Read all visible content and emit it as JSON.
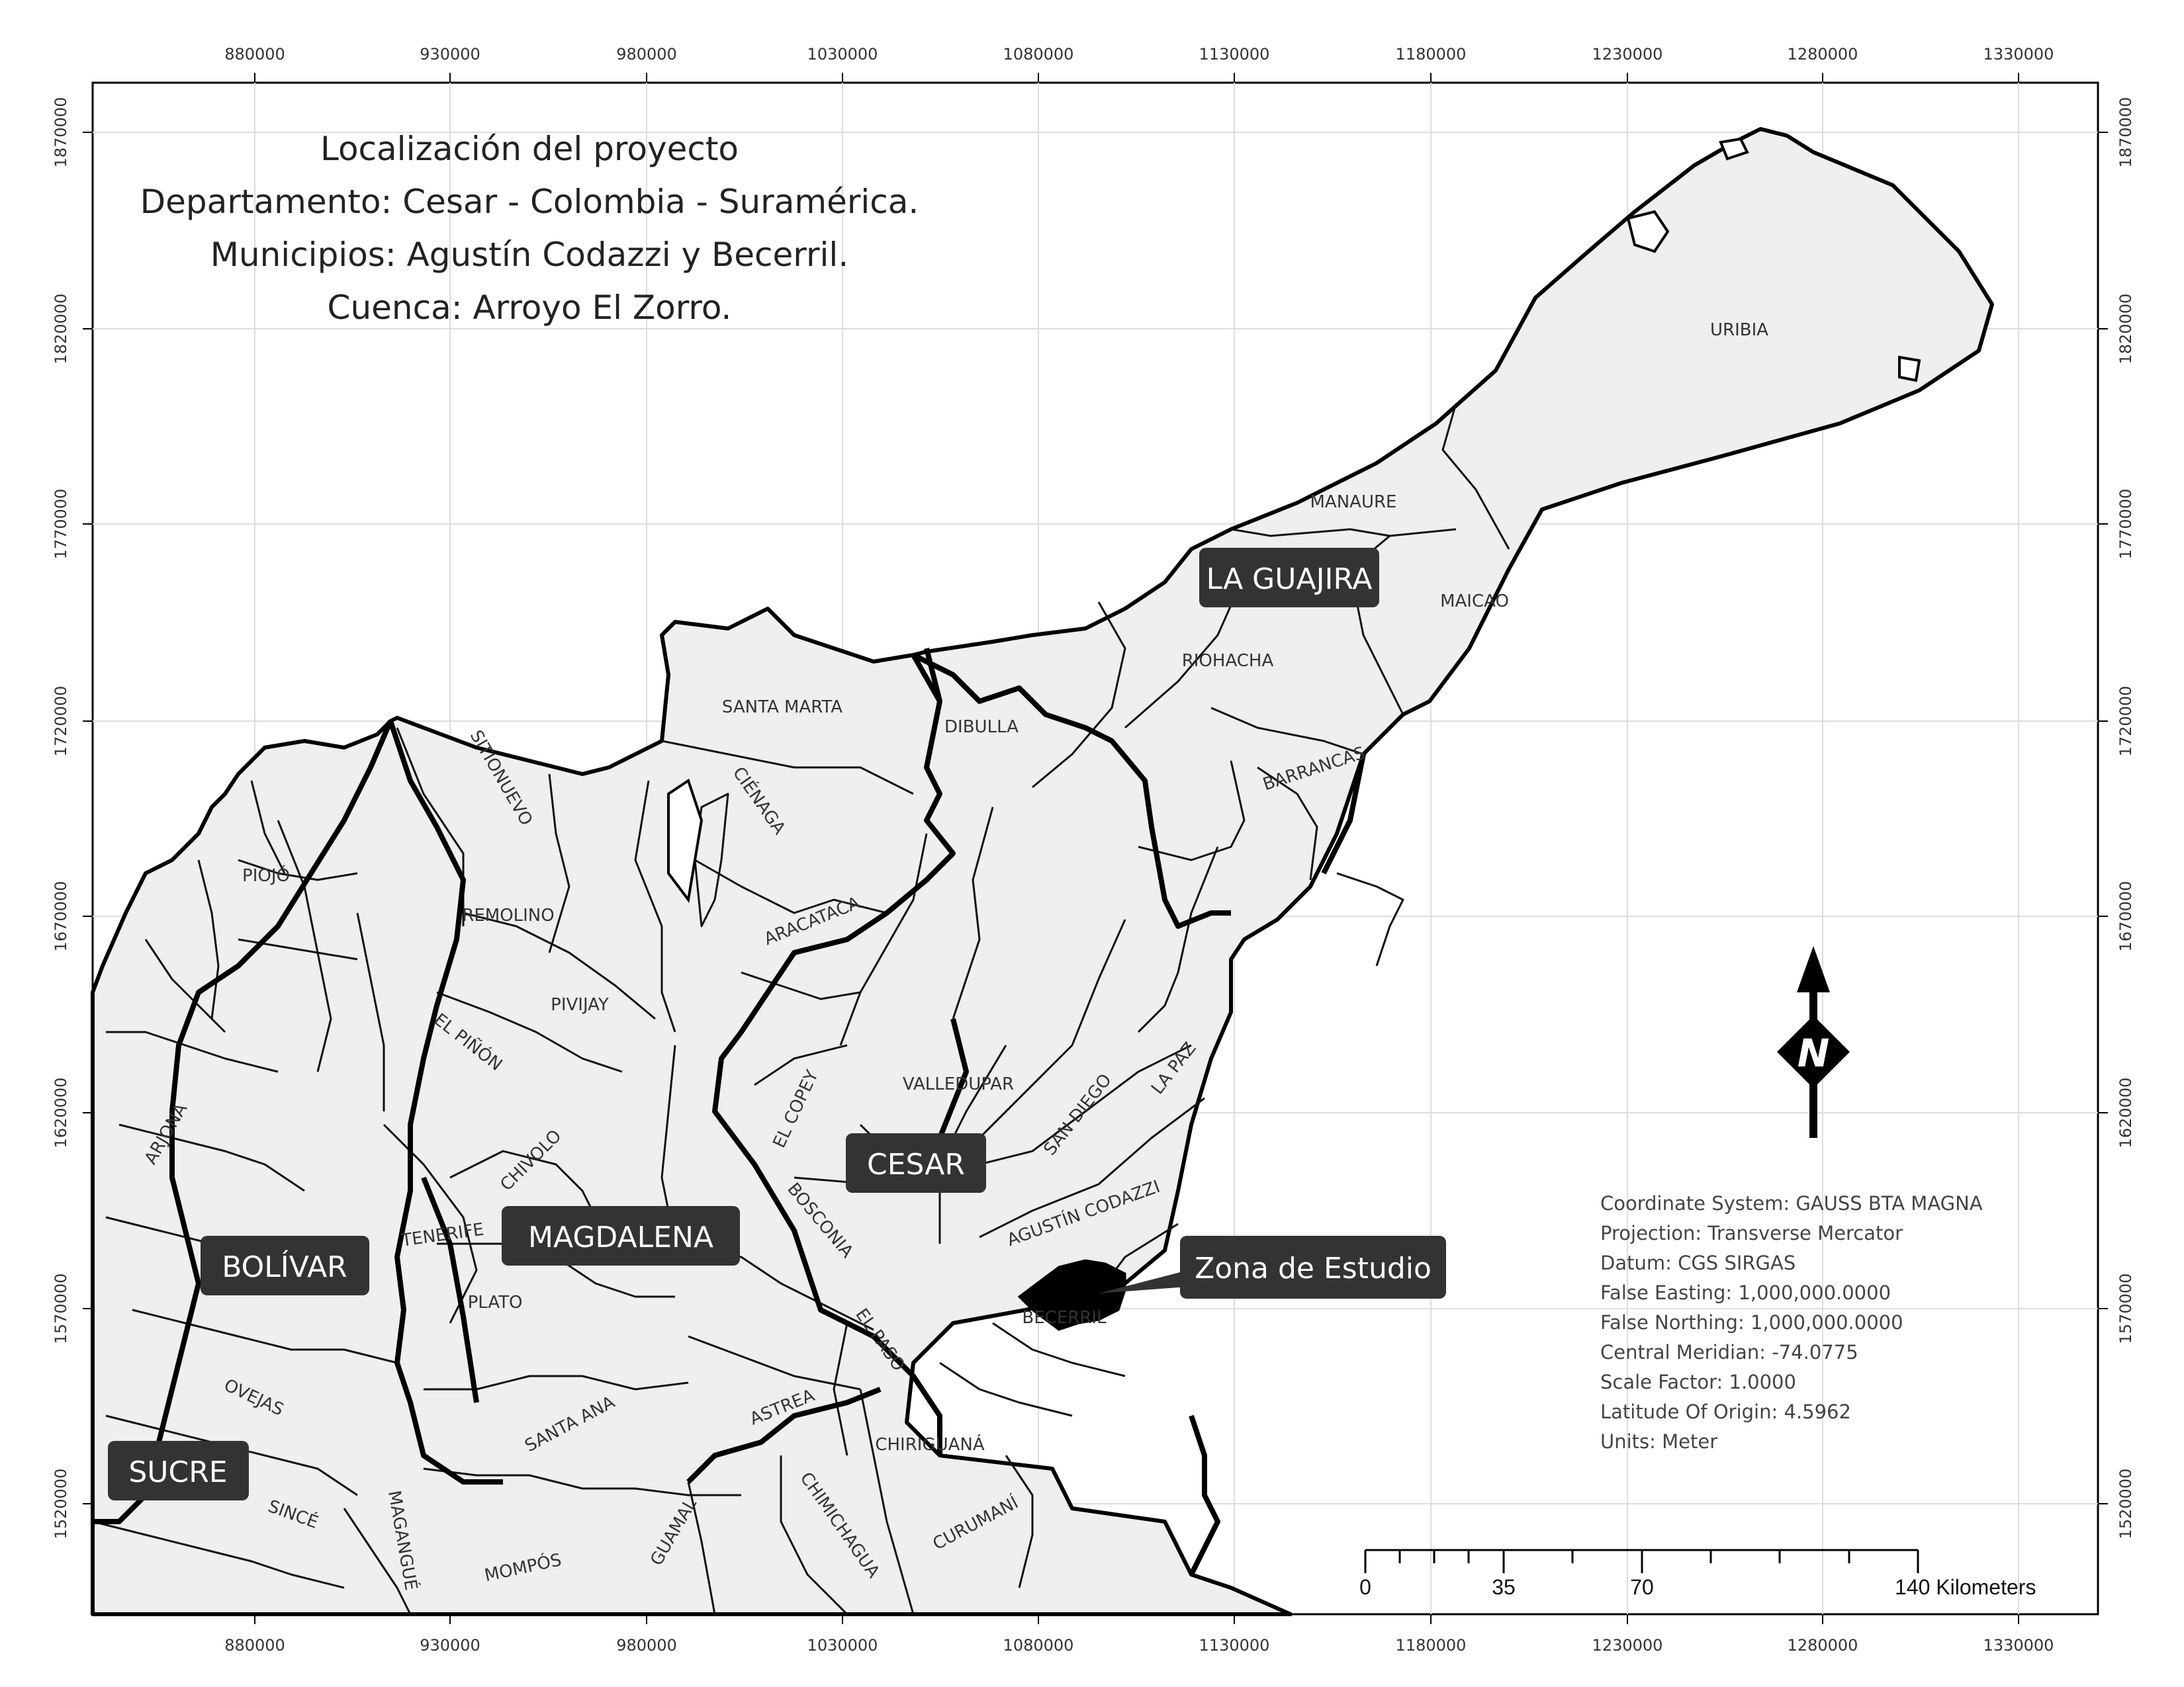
{
  "title_lines": [
    "Localización del proyecto",
    "Departamento: Cesar - Colombia - Suramérica.",
    "Municipios: Agustín Codazzi y Becerril.",
    "Cuenca: Arroyo El Zorro."
  ],
  "x_ticks": [
    "880000",
    "930000",
    "980000",
    "1030000",
    "1080000",
    "1130000",
    "1180000",
    "1230000",
    "1280000",
    "1330000"
  ],
  "y_ticks": [
    "1870000",
    "1820000",
    "1770000",
    "1720000",
    "1670000",
    "1620000",
    "1570000",
    "1520000"
  ],
  "departments": {
    "la_guajira": "LA GUAJIRA",
    "cesar": "CESAR",
    "magdalena": "MAGDALENA",
    "bolivar": "BOLÍVAR",
    "sucre": "SUCRE"
  },
  "municipalities": {
    "uribia": "URIBIA",
    "manaure": "MANAURE",
    "maicao": "MAICAO",
    "riohacha": "RIOHACHA",
    "santa_marta": "SANTA MARTA",
    "dibulla": "DIBULLA",
    "barrancas": "BARRANCAS",
    "sitionuevo": "SITIONUEVO",
    "cienaga": "CIÉNAGA",
    "piojo": "PIOJÓ",
    "remolino": "REMOLINO",
    "aracataca": "ARACATACA",
    "pivijay": "PIVIJAY",
    "el_pinon": "EL PIÑÓN",
    "valledupar": "VALLEDUPAR",
    "el_copey": "EL COPEY",
    "san_diego": "SAN DIEGO",
    "la_paz": "LA PAZ",
    "arjona": "ARJONA",
    "chivolo": "CHIVOLO",
    "bosconia": "BOSCONIA",
    "agustin_codazzi": "AGUSTÍN CODAZZI",
    "tenerife": "TENERIFE",
    "plato": "PLATO",
    "el_paso": "EL PASO",
    "becerril": "BECERRIL",
    "ovejas": "OVEJAS",
    "santa_ana": "SANTA ANA",
    "astrea": "ASTREA",
    "chiriguana": "CHIRIGUANÁ",
    "since": "SINCÉ",
    "magangue": "MAGANGUÉ",
    "mompos": "MOMPÓS",
    "guamal": "GUAMAL",
    "chimichagua": "CHIMICHAGUA",
    "curumani": "CURUMANÍ"
  },
  "study_zone_label": "Zona de Estudio",
  "north_arrow_letter": "N",
  "coordinate_info": [
    "Coordinate System: GAUSS BTA MAGNA",
    "Projection: Transverse Mercator",
    "Datum: CGS SIRGAS",
    "False Easting: 1,000,000.0000",
    "False Northing: 1,000,000.0000",
    "Central Meridian: -74.0775",
    "Scale Factor: 1.0000",
    "Latitude Of Origin: 4.5962",
    "Units: Meter"
  ],
  "scale_bar": {
    "labels": [
      "0",
      "35",
      "70",
      "140 Kilometers"
    ]
  },
  "colors": {
    "land_fill": "#efefef",
    "border": "#000000",
    "label_box": "#333333",
    "grid": "#dddddd"
  }
}
